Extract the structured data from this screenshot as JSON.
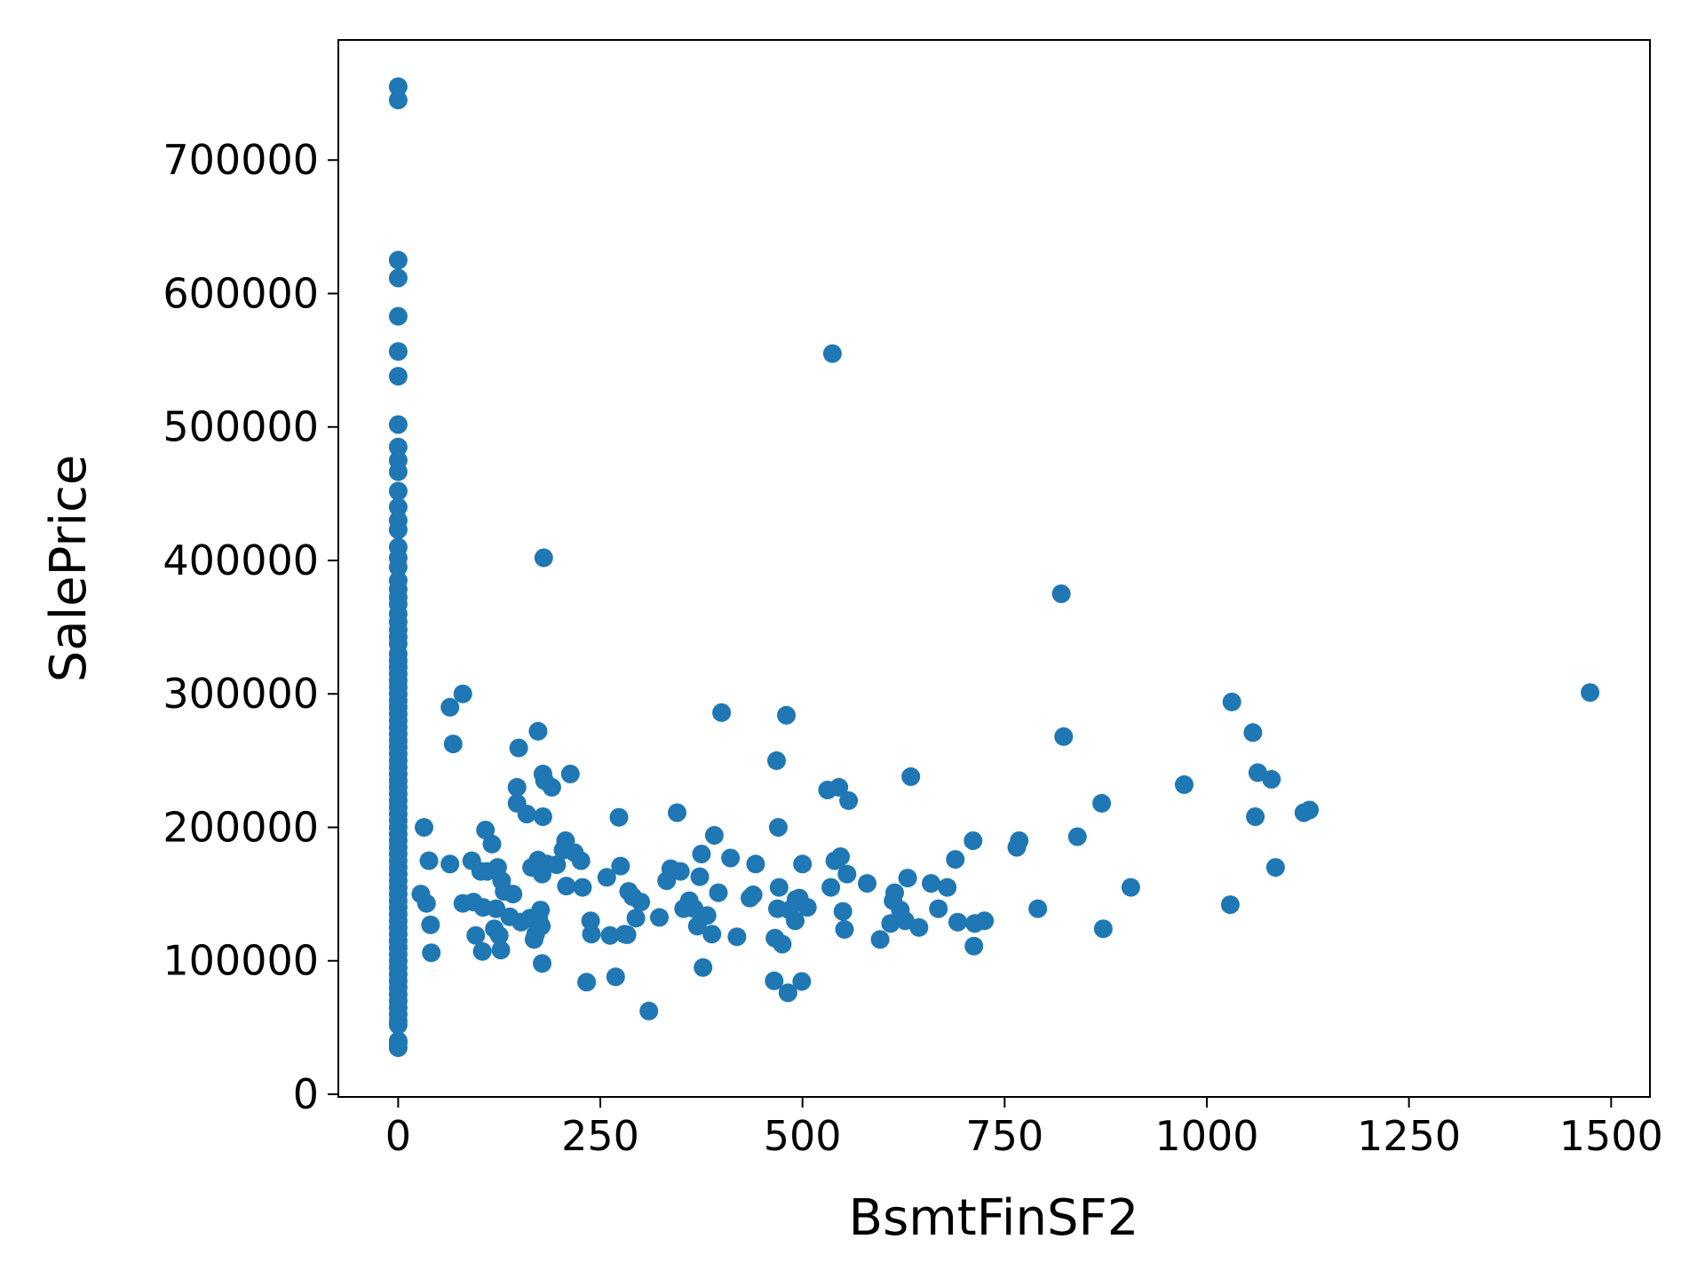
{
  "chart_data": {
    "type": "scatter",
    "title": "",
    "xlabel": "BsmtFinSF2",
    "ylabel": "SalePrice",
    "xlim": [
      -74,
      1548
    ],
    "ylim": [
      -2000,
      790000
    ],
    "xticks": [
      0,
      250,
      500,
      750,
      1000,
      1250,
      1500
    ],
    "xtick_labels": [
      "0",
      "250",
      "500",
      "750",
      "1000",
      "1250",
      "1500"
    ],
    "yticks": [
      0,
      100000,
      200000,
      300000,
      400000,
      500000,
      600000,
      700000
    ],
    "ytick_labels": [
      "0",
      "100000",
      "200000",
      "300000",
      "400000",
      "500000",
      "600000",
      "700000"
    ],
    "grid": false,
    "marker_color": "#1f77b4",
    "points": [
      [
        0,
        755000
      ],
      [
        0,
        745000
      ],
      [
        0,
        625000
      ],
      [
        0,
        611657
      ],
      [
        0,
        582933
      ],
      [
        0,
        556581
      ],
      [
        0,
        538000
      ],
      [
        0,
        501837
      ],
      [
        0,
        485000
      ],
      [
        0,
        475000
      ],
      [
        0,
        466500
      ],
      [
        0,
        451950
      ],
      [
        0,
        440000
      ],
      [
        0,
        430000
      ],
      [
        0,
        423000
      ],
      [
        0,
        410000
      ],
      [
        0,
        402000
      ],
      [
        0,
        395000
      ],
      [
        0,
        385000
      ],
      [
        0,
        378500
      ],
      [
        0,
        372500
      ],
      [
        0,
        367294
      ],
      [
        0,
        360000
      ],
      [
        0,
        354000
      ],
      [
        0,
        348000
      ],
      [
        0,
        342643
      ],
      [
        0,
        337500
      ],
      [
        0,
        330000
      ],
      [
        0,
        325000
      ],
      [
        0,
        320000
      ],
      [
        0,
        315000
      ],
      [
        0,
        310000
      ],
      [
        0,
        305000
      ],
      [
        0,
        300000
      ],
      [
        0,
        295000
      ],
      [
        0,
        290000
      ],
      [
        0,
        285000
      ],
      [
        0,
        280000
      ],
      [
        0,
        275000
      ],
      [
        0,
        270000
      ],
      [
        0,
        265000
      ],
      [
        0,
        260000
      ],
      [
        0,
        255000
      ],
      [
        0,
        250000
      ],
      [
        0,
        245000
      ],
      [
        0,
        240000
      ],
      [
        0,
        235000
      ],
      [
        0,
        230000
      ],
      [
        0,
        225000
      ],
      [
        0,
        220000
      ],
      [
        0,
        215000
      ],
      [
        0,
        210000
      ],
      [
        0,
        205000
      ],
      [
        0,
        200000
      ],
      [
        0,
        195000
      ],
      [
        0,
        190000
      ],
      [
        0,
        185000
      ],
      [
        0,
        180000
      ],
      [
        0,
        175000
      ],
      [
        0,
        170000
      ],
      [
        0,
        165000
      ],
      [
        0,
        160000
      ],
      [
        0,
        155000
      ],
      [
        0,
        150000
      ],
      [
        0,
        145000
      ],
      [
        0,
        140000
      ],
      [
        0,
        135000
      ],
      [
        0,
        130000
      ],
      [
        0,
        125000
      ],
      [
        0,
        120000
      ],
      [
        0,
        115000
      ],
      [
        0,
        110000
      ],
      [
        0,
        105000
      ],
      [
        0,
        100000
      ],
      [
        0,
        95000
      ],
      [
        0,
        90000
      ],
      [
        0,
        85000
      ],
      [
        0,
        80000
      ],
      [
        0,
        75000
      ],
      [
        0,
        70000
      ],
      [
        0,
        65000
      ],
      [
        0,
        60000
      ],
      [
        0,
        55000
      ],
      [
        0,
        52000
      ],
      [
        0,
        40000
      ],
      [
        0,
        37900
      ],
      [
        0,
        34900
      ],
      [
        28,
        150000
      ],
      [
        32,
        200000
      ],
      [
        35,
        143000
      ],
      [
        38,
        175000
      ],
      [
        40,
        127000
      ],
      [
        41,
        106000
      ],
      [
        64,
        290000
      ],
      [
        64,
        172500
      ],
      [
        68,
        262500
      ],
      [
        80,
        300000
      ],
      [
        80,
        143000
      ],
      [
        91,
        175000
      ],
      [
        93,
        144000
      ],
      [
        96,
        119000
      ],
      [
        102,
        167000
      ],
      [
        104,
        107000
      ],
      [
        105,
        140000
      ],
      [
        108,
        198000
      ],
      [
        110,
        167000
      ],
      [
        116,
        187500
      ],
      [
        119,
        124000
      ],
      [
        121,
        139000
      ],
      [
        123,
        170000
      ],
      [
        125,
        119000
      ],
      [
        127,
        108000
      ],
      [
        128,
        160000
      ],
      [
        131,
        152000
      ],
      [
        138,
        133000
      ],
      [
        142,
        150000
      ],
      [
        147,
        218000
      ],
      [
        147,
        230000
      ],
      [
        149,
        259500
      ],
      [
        152,
        129000
      ],
      [
        159,
        210000
      ],
      [
        163,
        132000
      ],
      [
        165,
        170000
      ],
      [
        168,
        116000
      ],
      [
        170,
        120000
      ],
      [
        173,
        272000
      ],
      [
        173,
        175500
      ],
      [
        174,
        131000
      ],
      [
        176,
        138000
      ],
      [
        177,
        126000
      ],
      [
        178,
        165000
      ],
      [
        178,
        98000
      ],
      [
        179,
        240000
      ],
      [
        179,
        208000
      ],
      [
        180,
        402000
      ],
      [
        181,
        235000
      ],
      [
        184,
        172500
      ],
      [
        190,
        230000
      ],
      [
        196,
        172000
      ],
      [
        204,
        183000
      ],
      [
        207,
        190000
      ],
      [
        208,
        156000
      ],
      [
        213,
        240000
      ],
      [
        218,
        181000
      ],
      [
        226,
        175000
      ],
      [
        228,
        155000
      ],
      [
        233,
        84000
      ],
      [
        238,
        130000
      ],
      [
        239,
        120000
      ],
      [
        258,
        162500
      ],
      [
        262,
        119000
      ],
      [
        269,
        88000
      ],
      [
        273,
        207500
      ],
      [
        275,
        171000
      ],
      [
        280,
        120000
      ],
      [
        283,
        119500
      ],
      [
        285,
        152000
      ],
      [
        290,
        148000
      ],
      [
        294,
        132000
      ],
      [
        300,
        144000
      ],
      [
        310,
        62383
      ],
      [
        323,
        132500
      ],
      [
        332,
        160000
      ],
      [
        337,
        169000
      ],
      [
        345,
        211000
      ],
      [
        349,
        167000
      ],
      [
        353,
        139000
      ],
      [
        360,
        145000
      ],
      [
        366,
        139000
      ],
      [
        370,
        126000
      ],
      [
        373,
        163000
      ],
      [
        375,
        180000
      ],
      [
        377,
        95000
      ],
      [
        382,
        134000
      ],
      [
        388,
        120000
      ],
      [
        391,
        194000
      ],
      [
        396,
        151000
      ],
      [
        400,
        286000
      ],
      [
        411,
        177000
      ],
      [
        419,
        118000
      ],
      [
        435,
        147000
      ],
      [
        439,
        149500
      ],
      [
        442,
        172500
      ],
      [
        465,
        85000
      ],
      [
        466,
        117000
      ],
      [
        468,
        250000
      ],
      [
        469,
        139000
      ],
      [
        470,
        200000
      ],
      [
        471,
        155000
      ],
      [
        475,
        112500
      ],
      [
        480,
        284000
      ],
      [
        482,
        76000
      ],
      [
        484,
        138000
      ],
      [
        491,
        130000
      ],
      [
        492,
        146000
      ],
      [
        496,
        147000
      ],
      [
        499,
        84500
      ],
      [
        500,
        172500
      ],
      [
        506,
        140000
      ],
      [
        531,
        228000
      ],
      [
        535,
        155000
      ],
      [
        537,
        555000
      ],
      [
        540,
        175000
      ],
      [
        545,
        230000
      ],
      [
        547,
        178000
      ],
      [
        550,
        137000
      ],
      [
        552,
        123500
      ],
      [
        555,
        165000
      ],
      [
        557,
        220000
      ],
      [
        580,
        158000
      ],
      [
        596,
        116000
      ],
      [
        609,
        128000
      ],
      [
        612,
        145000
      ],
      [
        614,
        151000
      ],
      [
        621,
        138000
      ],
      [
        627,
        130000
      ],
      [
        630,
        162000
      ],
      [
        634,
        238000
      ],
      [
        644,
        125000
      ],
      [
        659,
        158000
      ],
      [
        668,
        139000
      ],
      [
        679,
        155000
      ],
      [
        689,
        176000
      ],
      [
        692,
        129000
      ],
      [
        711,
        190000
      ],
      [
        712,
        111000
      ],
      [
        713,
        128000
      ],
      [
        725,
        130000
      ],
      [
        765,
        185000
      ],
      [
        768,
        190000
      ],
      [
        791,
        139000
      ],
      [
        820,
        375000
      ],
      [
        823,
        268000
      ],
      [
        840,
        193000
      ],
      [
        870,
        218000
      ],
      [
        872,
        124000
      ],
      [
        906,
        155000
      ],
      [
        972,
        232000
      ],
      [
        1029,
        142000
      ],
      [
        1031,
        294000
      ],
      [
        1057,
        271000
      ],
      [
        1060,
        208000
      ],
      [
        1063,
        241000
      ],
      [
        1080,
        236000
      ],
      [
        1085,
        170000
      ],
      [
        1120,
        211000
      ],
      [
        1127,
        213000
      ],
      [
        1474,
        301000
      ]
    ]
  }
}
